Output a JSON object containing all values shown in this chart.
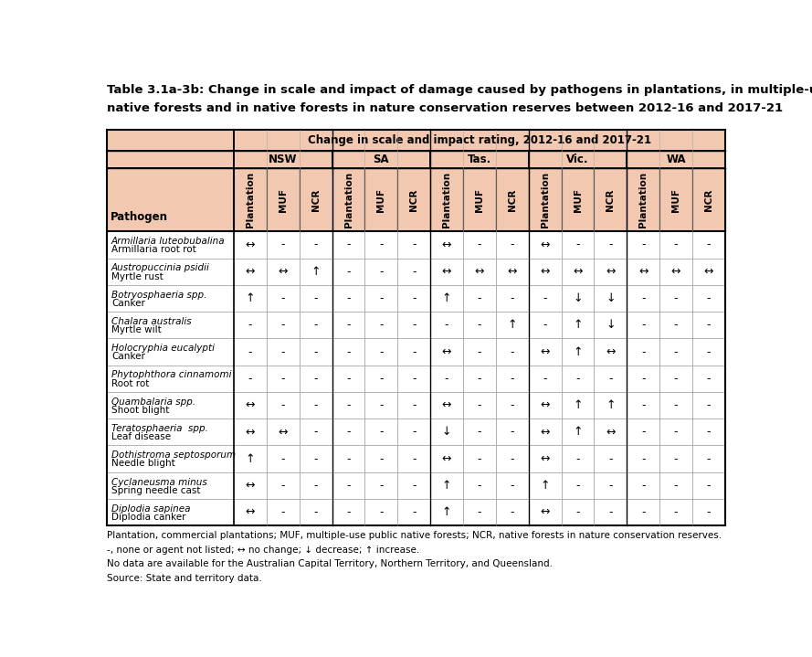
{
  "title_line1": "Table 3.1a-3b: Change in scale and impact of damage caused by pathogens in plantations, in multiple-use public",
  "title_line2": "native forests and in native forests in nature conservation reserves between 2012-16 and 2017-21",
  "header_top": "Change in scale and impact rating, 2012-16 and 2017-21",
  "states": [
    "NSW",
    "SA",
    "Tas.",
    "Vic.",
    "WA"
  ],
  "col_groups": [
    "Plantation",
    "MUF",
    "NCR"
  ],
  "pathogen_col_header": "Pathogen",
  "pathogens": [
    [
      "Armillaria luteobubalina",
      "Armillaria root rot"
    ],
    [
      "Austropuccinia psidii",
      "Myrtle rust"
    ],
    [
      "Botryosphaeria spp.",
      "Canker"
    ],
    [
      "Chalara australis",
      "Myrtle wilt"
    ],
    [
      "Holocryphia eucalypti",
      "Canker"
    ],
    [
      "Phytophthora cinnamomi",
      "Root rot"
    ],
    [
      "Quambalaria spp.",
      "Shoot blight"
    ],
    [
      "Teratosphaeria  spp.",
      "Leaf disease"
    ],
    [
      "Dothistroma septosporum",
      "Needle blight"
    ],
    [
      "Cyclaneusma minus",
      "Spring needle cast"
    ],
    [
      "Diplodia sapinea",
      "Diplodia canker"
    ]
  ],
  "data": [
    [
      "↔",
      "-",
      "-",
      "-",
      "-",
      "-",
      "↔",
      "-",
      "-",
      "↔",
      "-",
      "-",
      "-",
      "-",
      "-"
    ],
    [
      "↔",
      "↔",
      "↑",
      "-",
      "-",
      "-",
      "↔",
      "↔",
      "↔",
      "↔",
      "↔",
      "↔",
      "↔",
      "↔",
      "↔"
    ],
    [
      "↑",
      "-",
      "-",
      "-",
      "-",
      "-",
      "↑",
      "-",
      "-",
      "-",
      "↓",
      "↓",
      "-",
      "-",
      "-"
    ],
    [
      "-",
      "-",
      "-",
      "-",
      "-",
      "-",
      "-",
      "-",
      "↑",
      "-",
      "↑",
      "↓",
      "-",
      "-",
      "-"
    ],
    [
      "-",
      "-",
      "-",
      "-",
      "-",
      "-",
      "↔",
      "-",
      "-",
      "↔",
      "↑",
      "↔",
      "-",
      "-",
      "-"
    ],
    [
      "-",
      "-",
      "-",
      "-",
      "-",
      "-",
      "-",
      "-",
      "-",
      "-",
      "-",
      "-",
      "-",
      "-",
      "-"
    ],
    [
      "↔",
      "-",
      "-",
      "-",
      "-",
      "-",
      "↔",
      "-",
      "-",
      "↔",
      "↑",
      "↑",
      "-",
      "-",
      "-"
    ],
    [
      "↔",
      "↔",
      "-",
      "-",
      "-",
      "-",
      "↓",
      "-",
      "-",
      "↔",
      "↑",
      "↔",
      "-",
      "-",
      "-"
    ],
    [
      "↑",
      "-",
      "-",
      "-",
      "-",
      "-",
      "↔",
      "-",
      "-",
      "↔",
      "-",
      "-",
      "-",
      "-",
      "-"
    ],
    [
      "↔",
      "-",
      "-",
      "-",
      "-",
      "-",
      "↑",
      "-",
      "-",
      "↑",
      "-",
      "-",
      "-",
      "-",
      "-"
    ],
    [
      "↔",
      "-",
      "-",
      "-",
      "-",
      "-",
      "↑",
      "-",
      "-",
      "↔",
      "-",
      "-",
      "-",
      "-",
      "-"
    ]
  ],
  "footer_lines": [
    "Plantation, commercial plantations; MUF, multiple-use public native forests; NCR, native forests in nature conservation reserves.",
    "-, none or agent not listed; ↔ no change; ↓ decrease; ↑ increase.",
    "No data are available for the Australian Capital Territory, Northern Territory, and Queensland.",
    "Source: State and territory data."
  ],
  "header_bg": "#f2c9b0",
  "white": "#ffffff",
  "black": "#000000",
  "title_fontsize": 9.5,
  "header_fontsize": 8.5,
  "state_fontsize": 8.5,
  "col_label_fontsize": 7.5,
  "cell_fontsize": 9,
  "pathogen_fontsize": 7.5,
  "footer_fontsize": 7.5
}
